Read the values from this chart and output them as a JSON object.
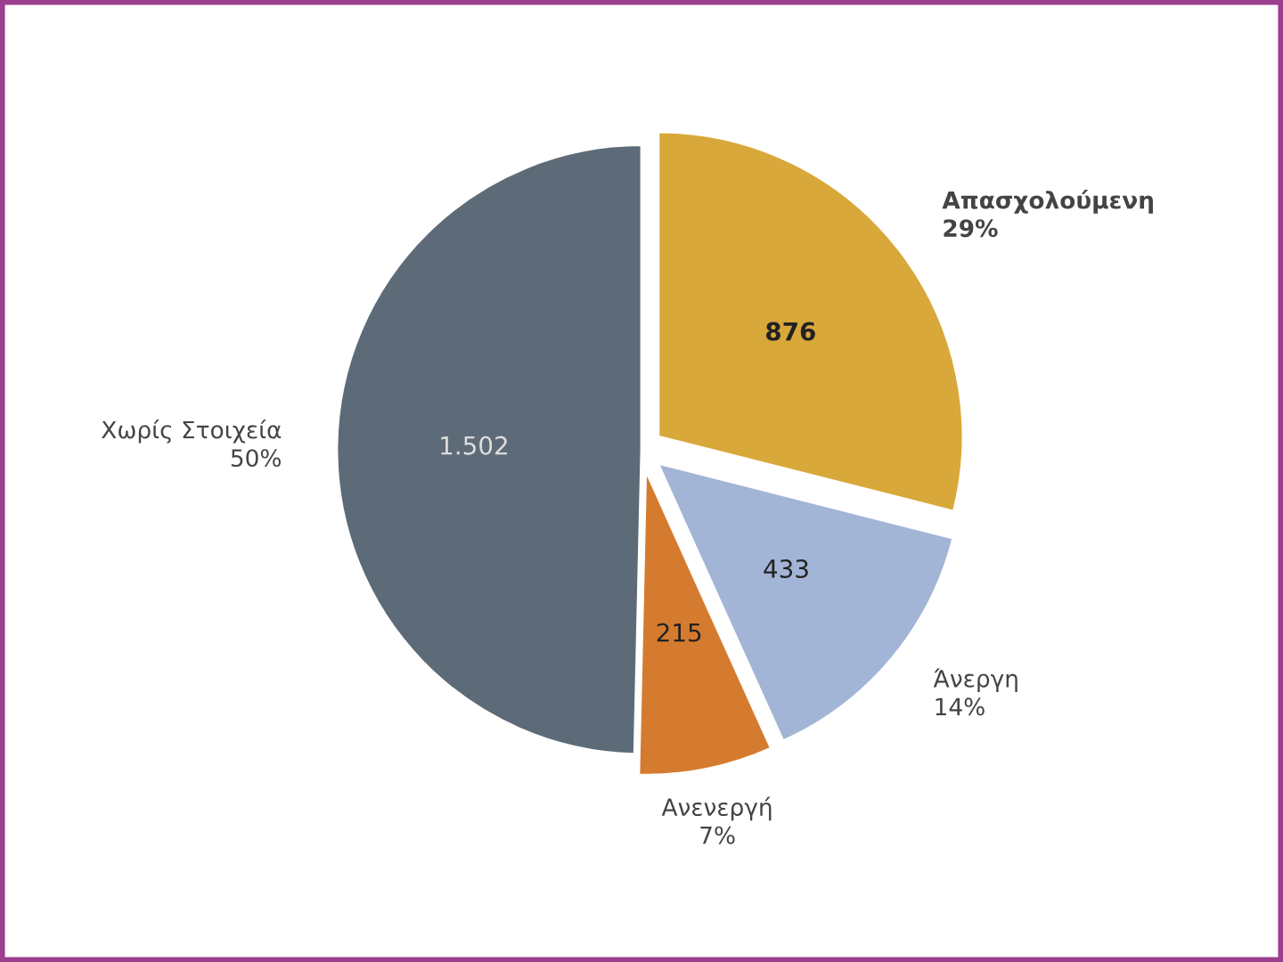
{
  "chart_data": {
    "type": "pie",
    "categories": [
      "Απασχολούμενη",
      "Άνεργη",
      "Ανενεργή",
      "Χωρίς Στοιχεία"
    ],
    "values": [
      876,
      433,
      215,
      1502
    ],
    "colors": [
      "#d9a83a",
      "#a3b5d6",
      "#d57b2f",
      "#5d6b78"
    ],
    "value_labels": [
      "876",
      "433",
      "215",
      "1.502"
    ],
    "annotations": [
      "29%",
      "14%",
      "7%",
      "50%"
    ],
    "legend": false
  }
}
